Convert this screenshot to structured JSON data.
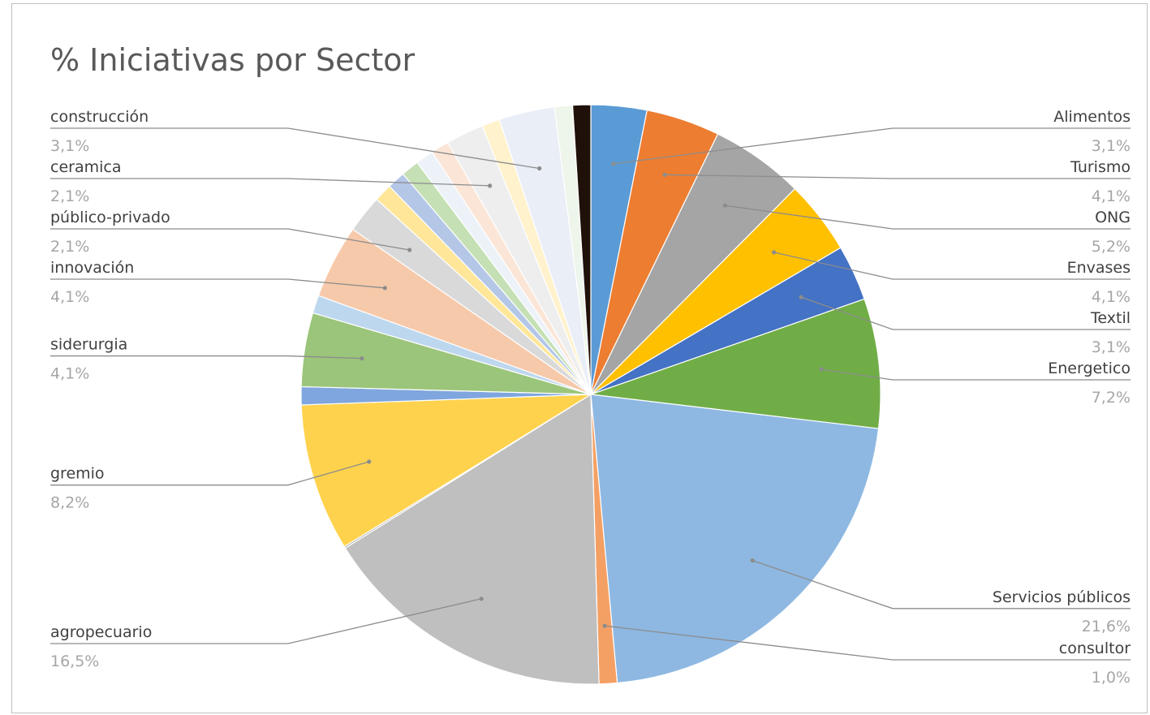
{
  "chart_data": {
    "type": "pie",
    "title": "% Iniciativas por Sector",
    "start_angle_deg": 0,
    "direction": "clockwise",
    "labeled_slices": [
      {
        "name": "Alimentos",
        "pct_label": "3,1%",
        "value": 3.1,
        "color": "#5B9BD5",
        "side": "right"
      },
      {
        "name": "Turismo",
        "pct_label": "4,1%",
        "value": 4.1,
        "color": "#ED7D31",
        "side": "right"
      },
      {
        "name": "ONG",
        "pct_label": "5,2%",
        "value": 5.2,
        "color": "#A5A5A5",
        "side": "right"
      },
      {
        "name": "Envases",
        "pct_label": "4,1%",
        "value": 4.1,
        "color": "#FFC000",
        "side": "right"
      },
      {
        "name": "Textil",
        "pct_label": "3,1%",
        "value": 3.1,
        "color": "#4472C4",
        "side": "right"
      },
      {
        "name": "Energetico",
        "pct_label": "7,2%",
        "value": 7.2,
        "color": "#70AD47",
        "side": "right"
      },
      {
        "name": "Servicios públicos",
        "pct_label": "21,6%",
        "value": 21.6,
        "color": "#8EB8E2",
        "side": "right"
      },
      {
        "name": "consultor",
        "pct_label": "1,0%",
        "value": 1.0,
        "color": "#F4A064",
        "side": "right"
      },
      {
        "name": "agropecuario",
        "pct_label": "16,5%",
        "value": 16.5,
        "color": "#BFBFBF",
        "side": "left"
      },
      {
        "name": "gremio",
        "pct_label": "8,2%",
        "value": 8.2,
        "color": "#FFD24D",
        "side": "left"
      },
      {
        "name": "siderurgia",
        "pct_label": "4,1%",
        "value": 4.1,
        "color": "#9BC57A",
        "side": "left"
      },
      {
        "name": "innovación",
        "pct_label": "4,1%",
        "value": 4.1,
        "color": "#F6C9AA",
        "side": "left"
      },
      {
        "name": "público-privado",
        "pct_label": "2,1%",
        "value": 2.1,
        "color": "#D9D9D9",
        "side": "left"
      },
      {
        "name": "ceramica",
        "pct_label": "2,1%",
        "value": 2.1,
        "color": "#EEEEEE",
        "side": "left"
      },
      {
        "name": "construcción",
        "pct_label": "3,1%",
        "value": 3.1,
        "color": "#E9EEF7",
        "side": "left"
      }
    ],
    "slices_clockwise": [
      {
        "ref": "Alimentos",
        "value": 3.1,
        "color": "#5B9BD5"
      },
      {
        "ref": "Turismo",
        "value": 4.1,
        "color": "#ED7D31"
      },
      {
        "ref": "ONG",
        "value": 5.2,
        "color": "#A5A5A5"
      },
      {
        "ref": "Envases",
        "value": 4.1,
        "color": "#FFC000"
      },
      {
        "ref": "Textil",
        "value": 3.1,
        "color": "#4472C4"
      },
      {
        "ref": "Energetico",
        "value": 7.2,
        "color": "#70AD47"
      },
      {
        "ref": "Servicios públicos",
        "value": 21.6,
        "color": "#8EB8E2"
      },
      {
        "ref": "consultor",
        "value": 1.0,
        "color": "#F4A064"
      },
      {
        "ref": "agropecuario",
        "value": 16.5,
        "color": "#BFBFBF"
      },
      {
        "ref": "",
        "value": 0.1,
        "color": "#A9A9A9"
      },
      {
        "ref": "gremio",
        "value": 8.2,
        "color": "#FFD24D"
      },
      {
        "ref": "",
        "value": 1.0,
        "color": "#7FA6DE"
      },
      {
        "ref": "siderurgia",
        "value": 4.1,
        "color": "#9BC57A"
      },
      {
        "ref": "",
        "value": 1.0,
        "color": "#BDD7EE"
      },
      {
        "ref": "innovación",
        "value": 4.1,
        "color": "#F6C9AA"
      },
      {
        "ref": "público-privado",
        "value": 2.1,
        "color": "#D9D9D9"
      },
      {
        "ref": "",
        "value": 1.0,
        "color": "#FFE699"
      },
      {
        "ref": "",
        "value": 1.0,
        "color": "#B4C7E7"
      },
      {
        "ref": "",
        "value": 1.0,
        "color": "#C5E0B4"
      },
      {
        "ref": "",
        "value": 1.0,
        "color": "#EDF2F9"
      },
      {
        "ref": "",
        "value": 1.0,
        "color": "#FBE5D6"
      },
      {
        "ref": "ceramica",
        "value": 2.1,
        "color": "#EEEEEE"
      },
      {
        "ref": "",
        "value": 1.0,
        "color": "#FFF2CC"
      },
      {
        "ref": "construcción",
        "value": 3.1,
        "color": "#E9EEF7"
      },
      {
        "ref": "",
        "value": 1.0,
        "color": "#EEF5EA"
      },
      {
        "ref": "",
        "value": 1.0,
        "color": "#1F1109"
      }
    ]
  }
}
